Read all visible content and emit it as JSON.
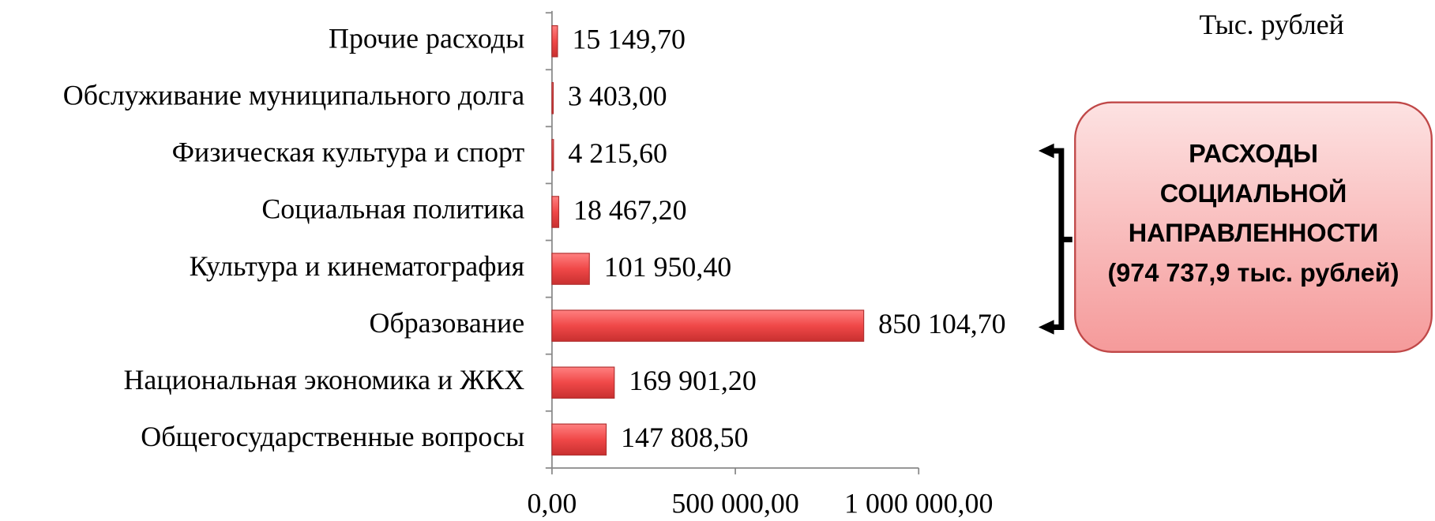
{
  "chart_data": {
    "type": "barh",
    "unit_label": "Тыс. рублей",
    "callout": [
      "РАСХОДЫ",
      "СОЦИАЛЬНОЙ",
      "НАПРАВЛЕННОСТИ",
      "(974 737,9 тыс. рублей)"
    ],
    "categories": [
      "Прочие расходы",
      "Обслуживание муниципального долга",
      "Физическая культура и спорт",
      "Социальная политика",
      "Культура и кинематография",
      "Образование",
      "Национальная экономика и ЖКХ",
      "Общегосударственные вопросы"
    ],
    "values": [
      15149.7,
      3403.0,
      4215.6,
      18467.2,
      101950.4,
      850104.7,
      169901.2,
      147808.5
    ],
    "value_labels": [
      "15 149,70",
      "3 403,00",
      "4 215,60",
      "18 467,20",
      "101 950,40",
      "850 104,70",
      "169 901,20",
      "147 808,50"
    ],
    "color": "#f04848",
    "xlim": [
      0,
      1000000
    ],
    "xticks": [
      {
        "value": 0,
        "label": "0,00"
      },
      {
        "value": 500000,
        "label": "500 000,00"
      },
      {
        "value": 1000000,
        "label": "1 000 000,00"
      }
    ]
  }
}
